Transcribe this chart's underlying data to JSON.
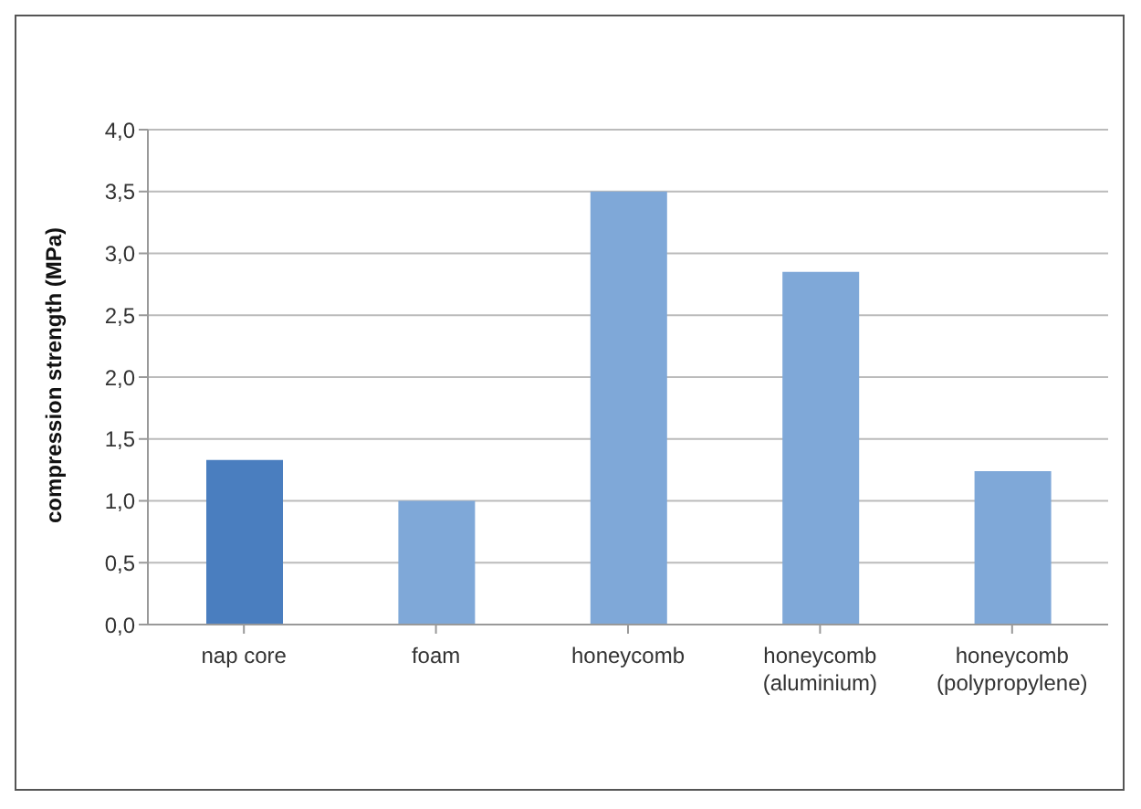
{
  "chart_data": {
    "type": "bar",
    "ylabel": "compression strength (MPa)",
    "categories": [
      "nap core",
      "foam",
      "honeycomb",
      "honeycomb\n(aluminium)",
      "honeycomb\n(polypropylene)"
    ],
    "values": [
      1.33,
      1.0,
      3.5,
      2.85,
      1.24
    ],
    "colors": [
      "#4a7ebf",
      "#7fa8d8",
      "#7fa8d8",
      "#7fa8d8",
      "#7fa8d8"
    ],
    "ylim": [
      0,
      4
    ],
    "yticks": [
      {
        "value": 0,
        "label": "0,0"
      },
      {
        "value": 0.5,
        "label": "0,5"
      },
      {
        "value": 1,
        "label": "1,0"
      },
      {
        "value": 1.5,
        "label": "1,5"
      },
      {
        "value": 2,
        "label": "2,0"
      },
      {
        "value": 2.5,
        "label": "2,5"
      },
      {
        "value": 3,
        "label": "3,0"
      },
      {
        "value": 3.5,
        "label": "3,5"
      },
      {
        "value": 4,
        "label": "4,0"
      }
    ],
    "grid": "y",
    "legend": false
  }
}
